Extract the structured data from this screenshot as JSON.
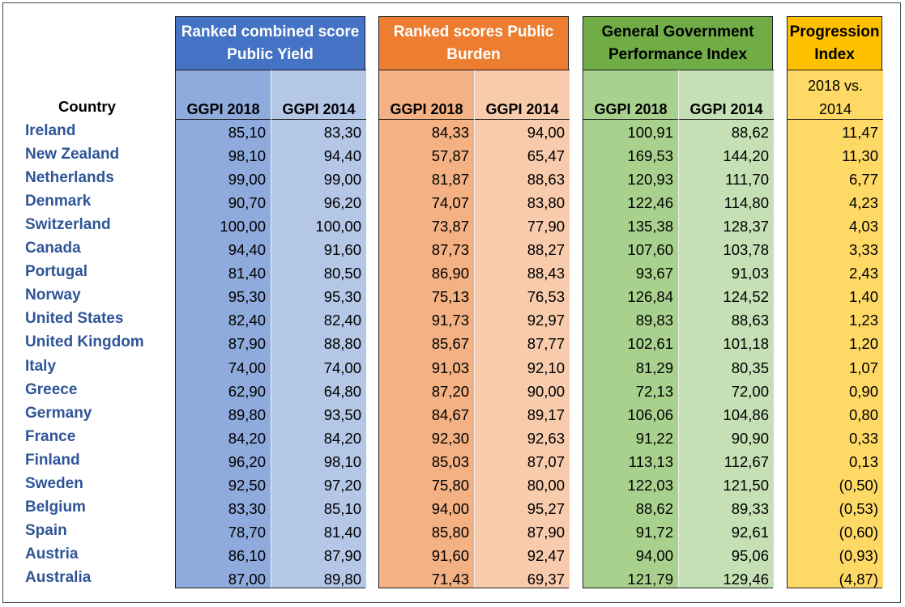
{
  "chart_data": {
    "type": "table",
    "country_header": "Country",
    "groups": [
      {
        "title": "Ranked combined score Public Yield",
        "columns": [
          "GGPI 2018",
          "GGPI 2014"
        ]
      },
      {
        "title": "Ranked scores Public Burden",
        "columns": [
          "GGPI 2018",
          "GGPI 2014"
        ]
      },
      {
        "title": "General Government Performance Index",
        "columns": [
          "GGPI 2018",
          "GGPI 2014"
        ]
      },
      {
        "title": "Progression Index",
        "columns": [
          "2018 vs. 2014"
        ]
      }
    ],
    "progression_sub": [
      "2018 vs.",
      "2014"
    ],
    "colors": {
      "blue_title": "#4472c4",
      "blue_dark": "#8faadc",
      "blue_light": "#b4c7e7",
      "orange_title": "#ed7d31",
      "orange_dark": "#f4b183",
      "orange_light": "#f8cbad",
      "green_title": "#70ad47",
      "green_dark": "#a9d18e",
      "green_light": "#c5e0b4",
      "yellow_title": "#ffc000",
      "yellow": "#ffd966",
      "country_text": "#2f5597"
    },
    "rows": [
      {
        "country": "Ireland",
        "values": [
          "85,10",
          "83,30",
          "84,33",
          "94,00",
          "100,91",
          "88,62",
          "11,47"
        ]
      },
      {
        "country": "New Zealand",
        "values": [
          "98,10",
          "94,40",
          "57,87",
          "65,47",
          "169,53",
          "144,20",
          "11,30"
        ]
      },
      {
        "country": "Netherlands",
        "values": [
          "99,00",
          "99,00",
          "81,87",
          "88,63",
          "120,93",
          "111,70",
          "6,77"
        ]
      },
      {
        "country": "Denmark",
        "values": [
          "90,70",
          "96,20",
          "74,07",
          "83,80",
          "122,46",
          "114,80",
          "4,23"
        ]
      },
      {
        "country": "Switzerland",
        "values": [
          "100,00",
          "100,00",
          "73,87",
          "77,90",
          "135,38",
          "128,37",
          "4,03"
        ]
      },
      {
        "country": "Canada",
        "values": [
          "94,40",
          "91,60",
          "87,73",
          "88,27",
          "107,60",
          "103,78",
          "3,33"
        ]
      },
      {
        "country": "Portugal",
        "values": [
          "81,40",
          "80,50",
          "86,90",
          "88,43",
          "93,67",
          "91,03",
          "2,43"
        ]
      },
      {
        "country": "Norway",
        "values": [
          "95,30",
          "95,30",
          "75,13",
          "76,53",
          "126,84",
          "124,52",
          "1,40"
        ]
      },
      {
        "country": "United States",
        "values": [
          "82,40",
          "82,40",
          "91,73",
          "92,97",
          "89,83",
          "88,63",
          "1,23"
        ]
      },
      {
        "country": "United Kingdom",
        "values": [
          "87,90",
          "88,80",
          "85,67",
          "87,77",
          "102,61",
          "101,18",
          "1,20"
        ]
      },
      {
        "country": "Italy",
        "values": [
          "74,00",
          "74,00",
          "91,03",
          "92,10",
          "81,29",
          "80,35",
          "1,07"
        ]
      },
      {
        "country": "Greece",
        "values": [
          "62,90",
          "64,80",
          "87,20",
          "90,00",
          "72,13",
          "72,00",
          "0,90"
        ]
      },
      {
        "country": "Germany",
        "values": [
          "89,80",
          "93,50",
          "84,67",
          "89,17",
          "106,06",
          "104,86",
          "0,80"
        ]
      },
      {
        "country": "France",
        "values": [
          "84,20",
          "84,20",
          "92,30",
          "92,63",
          "91,22",
          "90,90",
          "0,33"
        ]
      },
      {
        "country": "Finland",
        "values": [
          "96,20",
          "98,10",
          "85,03",
          "87,07",
          "113,13",
          "112,67",
          "0,13"
        ]
      },
      {
        "country": "Sweden",
        "values": [
          "92,50",
          "97,20",
          "75,80",
          "80,00",
          "122,03",
          "121,50",
          "(0,50)"
        ]
      },
      {
        "country": "Belgium",
        "values": [
          "83,30",
          "85,10",
          "94,00",
          "95,27",
          "88,62",
          "89,33",
          "(0,53)"
        ]
      },
      {
        "country": "Spain",
        "values": [
          "78,70",
          "81,40",
          "85,80",
          "87,90",
          "91,72",
          "92,61",
          "(0,60)"
        ]
      },
      {
        "country": "Austria",
        "values": [
          "86,10",
          "87,90",
          "91,60",
          "92,47",
          "94,00",
          "95,06",
          "(0,93)"
        ]
      },
      {
        "country": "Australia",
        "values": [
          "87,00",
          "89,80",
          "71,43",
          "69,37",
          "121,79",
          "129,46",
          "(4,87)"
        ]
      }
    ]
  }
}
